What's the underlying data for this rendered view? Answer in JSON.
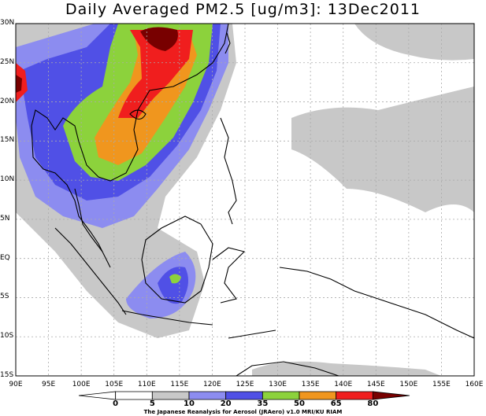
{
  "title": "Daily Averaged PM2.5 [ug/m3]: 13Dec2011",
  "lat_labels": [
    "30N",
    "25N",
    "20N",
    "15N",
    "10N",
    "5N",
    "EQ",
    "5S",
    "10S",
    "15S"
  ],
  "lon_labels": [
    "90E",
    "95E",
    "100E",
    "105E",
    "110E",
    "115E",
    "120E",
    "125E",
    "130E",
    "135E",
    "140E",
    "145E",
    "150E",
    "155E",
    "160E"
  ],
  "colorbar": {
    "labels": [
      "0",
      "5",
      "10",
      "20",
      "35",
      "50",
      "65",
      "80"
    ],
    "colors": [
      "#ffffff",
      "#ffffff",
      "#c8c8c8",
      "#8c8cf0",
      "#5050e6",
      "#8cd23c",
      "#f0961e",
      "#f01e1e",
      "#780000"
    ]
  },
  "credit": "The Japanese Reanalysis for Aerosol (JRAero) v1.0 MRI/KU RIAM",
  "colors": {
    "frame": "#000000",
    "grid": "#aaaaaa",
    "coast": "#000000"
  }
}
